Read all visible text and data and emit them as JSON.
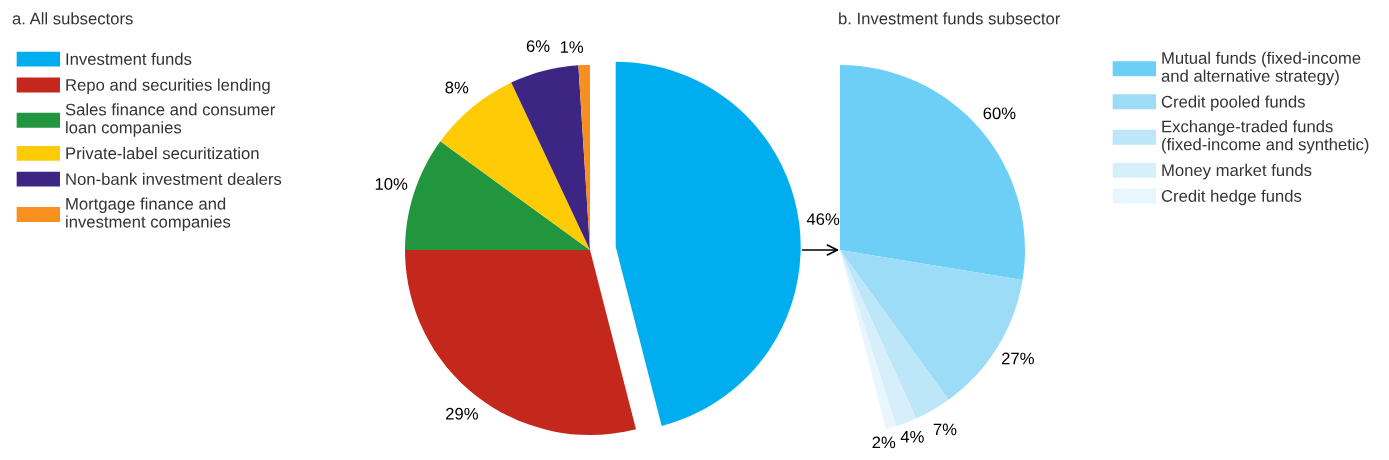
{
  "chart_data": [
    {
      "type": "pie",
      "title": "a. All subsectors",
      "legend": "left",
      "categories": [
        "Investment funds",
        "Repo and securities lending",
        "Sales finance and consumer\nloan companies",
        "Private-label securitization",
        "Non-bank investment dealers",
        "Mortgage finance and\ninvestment companies"
      ],
      "values": [
        46,
        29,
        10,
        8,
        6,
        1
      ],
      "value_labels": [
        "46%",
        "29%",
        "10%",
        "8%",
        "6%",
        "1%"
      ],
      "colors": [
        "#00aeef",
        "#c4281c",
        "#22963e",
        "#ffcb05",
        "#3d2683",
        "#f7901e"
      ]
    },
    {
      "type": "pie",
      "title": "b. Investment funds subsector",
      "legend": "right",
      "categories": [
        "Mutual funds (fixed-income\nand alternative strategy)",
        "Credit pooled funds",
        "Exchange-traded funds\n(fixed-income and synthetic)",
        "Money market funds",
        "Credit hedge funds"
      ],
      "values": [
        60,
        27,
        7,
        4,
        2
      ],
      "value_labels": [
        "60%",
        "27%",
        "7%",
        "4%",
        "2%"
      ],
      "colors": [
        "#6dcff6",
        "#9ddcf7",
        "#bde6f9",
        "#d6effb",
        "#e8f6fd"
      ]
    }
  ]
}
